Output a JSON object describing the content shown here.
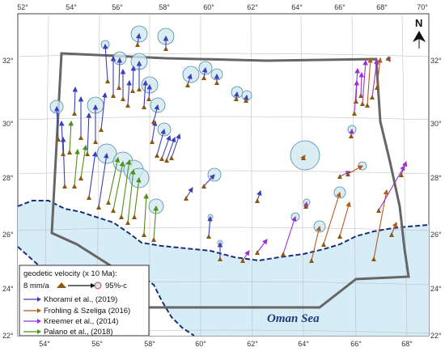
{
  "map": {
    "lon_ticks_bottom": [
      "54°",
      "56°",
      "58°",
      "60°",
      "62°",
      "64°",
      "66°",
      "68°"
    ],
    "lon_ticks_top": [
      "52°",
      "54°",
      "56°",
      "58°",
      "60°",
      "62°",
      "64°",
      "66°",
      "68°",
      "70°"
    ],
    "lat_ticks_left": [
      "32°",
      "30°",
      "28°",
      "26°",
      "24°",
      "22°"
    ],
    "lat_ticks_right": [
      "32°",
      "30°",
      "28°",
      "26°",
      "24°",
      "22°"
    ],
    "sea_label": "Oman Sea",
    "north_label": "N",
    "colors": {
      "sea": "#d6ecf6",
      "land": "#ffffff",
      "coast": "#1a2f7a",
      "region_outline": "#666666",
      "ellipse_fill": "#cfe8f0",
      "ellipse_stroke": "#4f8ca8",
      "khorami": "#3b3fb8",
      "frohling": "#b35a1f",
      "kreemer": "#9b30d4",
      "palano": "#4f8f1a",
      "station": "#8a5a14"
    }
  },
  "legend": {
    "title": "geodetic velocity (x 10 Ma):",
    "scale_label": "8 mm/a",
    "conf_label": "95%-c",
    "entries": [
      {
        "label": "Khorami et al., (2019)",
        "color": "#3b3fb8"
      },
      {
        "label": "Frohling & Szeliga (2016)",
        "color": "#b35a1f"
      },
      {
        "label": "Kreemer et al., (2014)",
        "color": "#9b30d4"
      },
      {
        "label": "Palano et al., (2018)",
        "color": "#4f8f1a"
      }
    ]
  }
}
